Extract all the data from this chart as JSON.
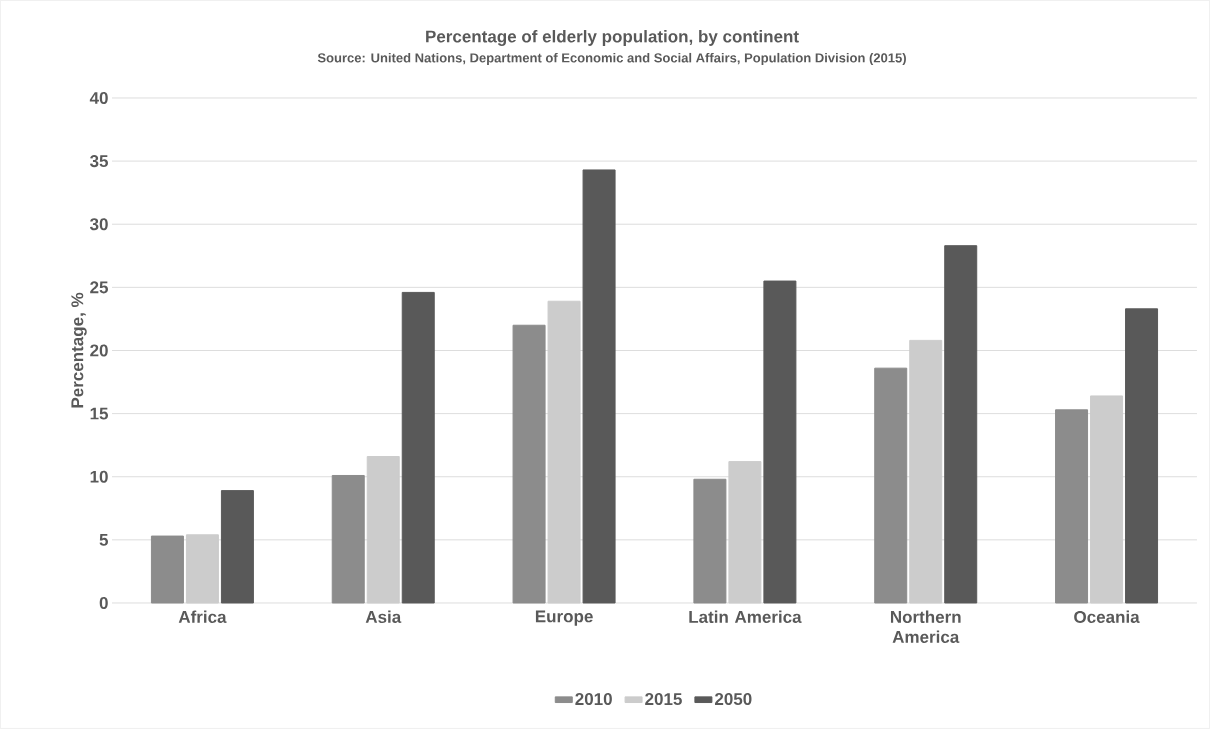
{
  "chart_data": {
    "type": "bar",
    "title": "Percentage of elderly population, by continent",
    "subtitle": "Source: United Nations, Department of Economic and Social Affairs, Population Division (2015)",
    "ylabel": "Percentage, %",
    "categories": [
      "Africa",
      "Asia",
      "Europe",
      "Latin America",
      "Northern America",
      "Oceania"
    ],
    "series": [
      {
        "name": "2010",
        "color": "#8c8c8c",
        "values": [
          5.3,
          10.1,
          22.0,
          9.8,
          18.6,
          15.3
        ]
      },
      {
        "name": "2015",
        "color": "#cccccc",
        "values": [
          5.4,
          11.6,
          23.9,
          11.2,
          20.8,
          16.4
        ]
      },
      {
        "name": "2050",
        "color": "#595959",
        "values": [
          8.9,
          24.6,
          34.3,
          25.5,
          28.3,
          23.3
        ]
      }
    ],
    "ylim": [
      0,
      40
    ],
    "yticks": [
      0,
      5,
      10,
      15,
      20,
      25,
      30,
      35,
      40
    ],
    "grid": "y",
    "legend": "bottom"
  }
}
